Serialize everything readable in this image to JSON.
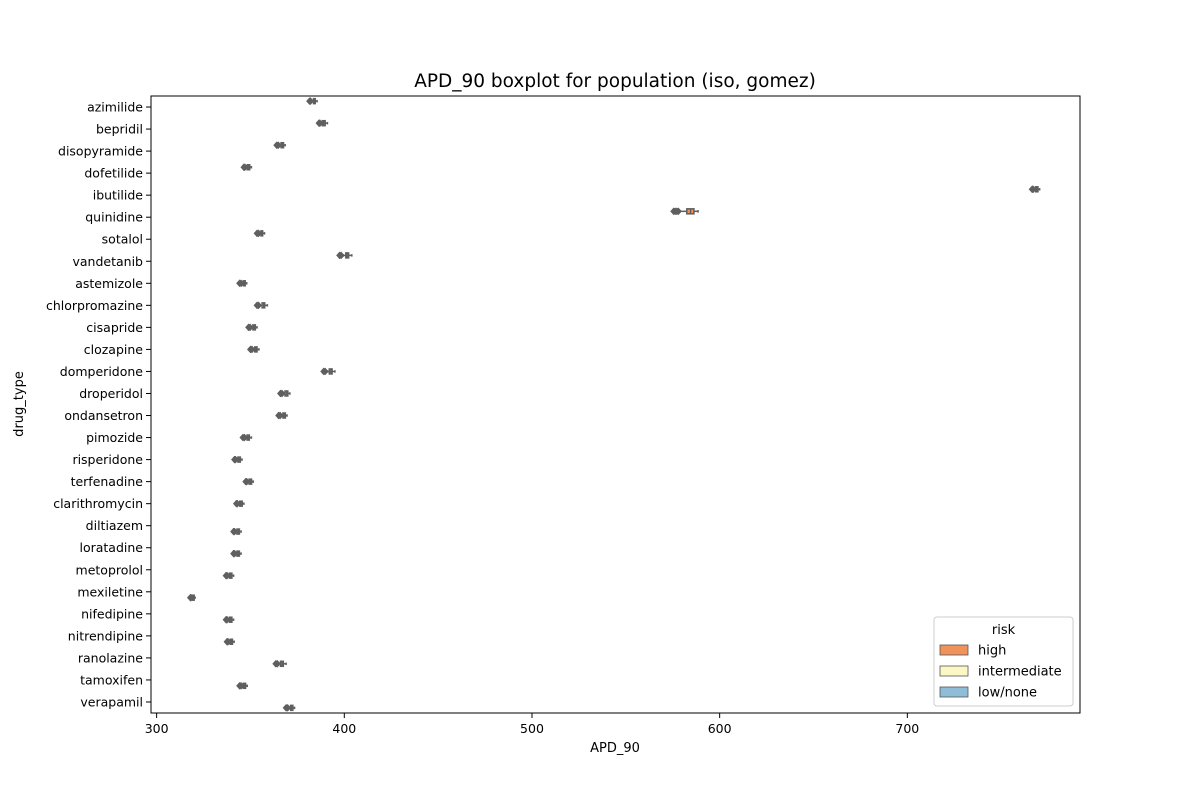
{
  "chart_data": {
    "type": "boxplot",
    "title": "APD_90 boxplot for population (iso, gomez)",
    "xlabel": "APD_90",
    "ylabel": "drug_type",
    "xlim": [
      297,
      792
    ],
    "xticks": [
      300,
      400,
      500,
      600,
      700
    ],
    "grid": false,
    "legend": {
      "title": "risk",
      "placement": "bottom-right",
      "entries": [
        {
          "label": "high",
          "color": "#f0935a"
        },
        {
          "label": "intermediate",
          "color": "#fbf8c6"
        },
        {
          "label": "low/none",
          "color": "#8fbcd6"
        }
      ]
    },
    "box_edge_color": "#5f5f5f",
    "categories": [
      "azimilide",
      "bepridil",
      "disopyramide",
      "dofetilide",
      "ibutilide",
      "quinidine",
      "sotalol",
      "vandetanib",
      "astemizole",
      "chlorpromazine",
      "cisapride",
      "clozapine",
      "domperidone",
      "droperidol",
      "ondansetron",
      "pimozide",
      "risperidone",
      "terfenadine",
      "clarithromycin",
      "diltiazem",
      "loratadine",
      "metoprolol",
      "mexiletine",
      "nifedipine",
      "nitrendipine",
      "ranolazine",
      "tamoxifen",
      "verapamil"
    ],
    "series": [
      {
        "category": "azimilide",
        "risk": "high",
        "min": 383,
        "q1": 383.6,
        "median": 384,
        "q3": 384.5,
        "max": 385.5,
        "outliers": [
          381.5,
          382
        ]
      },
      {
        "category": "bepridil",
        "risk": "high",
        "min": 387.5,
        "q1": 388.3,
        "median": 389,
        "q3": 389.8,
        "max": 391,
        "outliers": [
          386.5,
          387
        ]
      },
      {
        "category": "disopyramide",
        "risk": "high",
        "min": 365.5,
        "q1": 366.3,
        "median": 367,
        "q3": 367.6,
        "max": 368.5,
        "outliers": [
          364,
          364.8
        ]
      },
      {
        "category": "dofetilide",
        "risk": "high",
        "min": 347.5,
        "q1": 348.3,
        "median": 349,
        "q3": 349.6,
        "max": 350.5,
        "outliers": [
          346.5,
          347
        ]
      },
      {
        "category": "ibutilide",
        "risk": "high",
        "min": 767.5,
        "q1": 768.3,
        "median": 769,
        "q3": 769.6,
        "max": 770.5,
        "outliers": [
          766.5,
          767
        ]
      },
      {
        "category": "quinidine",
        "risk": "high",
        "min": 578.5,
        "q1": 582.5,
        "median": 584.5,
        "q3": 586.3,
        "max": 588.5,
        "outliers": [
          575.5,
          576.3,
          577.2,
          578
        ]
      },
      {
        "category": "sotalol",
        "risk": "high",
        "min": 355,
        "q1": 355.6,
        "median": 356,
        "q3": 356.5,
        "max": 357.5,
        "outliers": [
          353.5,
          354.3
        ]
      },
      {
        "category": "vandetanib",
        "risk": "high",
        "min": 399.5,
        "q1": 400.8,
        "median": 401.5,
        "q3": 402.3,
        "max": 404,
        "outliers": [
          397.5,
          398.3
        ]
      },
      {
        "category": "astemizole",
        "risk": "intermediate",
        "min": 345.5,
        "q1": 346.2,
        "median": 346.7,
        "q3": 347.2,
        "max": 348,
        "outliers": [
          344.2,
          345
        ]
      },
      {
        "category": "chlorpromazine",
        "risk": "intermediate",
        "min": 355,
        "q1": 356.2,
        "median": 357,
        "q3": 357.6,
        "max": 359,
        "outliers": [
          353.5,
          354.3
        ]
      },
      {
        "category": "cisapride",
        "risk": "intermediate",
        "min": 350.5,
        "q1": 351.3,
        "median": 352,
        "q3": 352.6,
        "max": 353.5,
        "outliers": [
          349,
          349.8
        ]
      },
      {
        "category": "clozapine",
        "risk": "intermediate",
        "min": 351.5,
        "q1": 352.3,
        "median": 353,
        "q3": 353.5,
        "max": 354.5,
        "outliers": [
          350,
          350.8
        ]
      },
      {
        "category": "domperidone",
        "risk": "intermediate",
        "min": 391,
        "q1": 392,
        "median": 392.8,
        "q3": 393.5,
        "max": 395,
        "outliers": [
          389,
          389.8
        ]
      },
      {
        "category": "droperidol",
        "risk": "intermediate",
        "min": 367.5,
        "q1": 368.4,
        "median": 369.2,
        "q3": 369.9,
        "max": 371,
        "outliers": [
          366,
          366.8
        ]
      },
      {
        "category": "ondansetron",
        "risk": "intermediate",
        "min": 366.5,
        "q1": 367.3,
        "median": 368,
        "q3": 368.6,
        "max": 369.5,
        "outliers": [
          365,
          365.8
        ]
      },
      {
        "category": "pimozide",
        "risk": "intermediate",
        "min": 347.5,
        "q1": 348.2,
        "median": 348.8,
        "q3": 349.4,
        "max": 350.5,
        "outliers": [
          346,
          346.8
        ]
      },
      {
        "category": "risperidone",
        "risk": "intermediate",
        "min": 342.5,
        "q1": 343.3,
        "median": 344,
        "q3": 344.6,
        "max": 345.5,
        "outliers": [
          341.5,
          342
        ]
      },
      {
        "category": "terfenadine",
        "risk": "intermediate",
        "min": 348.5,
        "q1": 349.3,
        "median": 350,
        "q3": 350.6,
        "max": 351.5,
        "outliers": [
          347.5,
          348
        ]
      },
      {
        "category": "clarithromycin",
        "risk": "intermediate",
        "min": 343.5,
        "q1": 344.3,
        "median": 345,
        "q3": 345.6,
        "max": 346.5,
        "outliers": [
          342.5,
          343
        ]
      },
      {
        "category": "diltiazem",
        "risk": "low/none",
        "min": 342,
        "q1": 342.8,
        "median": 343.5,
        "q3": 344.1,
        "max": 345,
        "outliers": [
          341,
          341.5
        ]
      },
      {
        "category": "loratadine",
        "risk": "low/none",
        "min": 342,
        "q1": 342.8,
        "median": 343.5,
        "q3": 344.1,
        "max": 345,
        "outliers": [
          341,
          341.5
        ]
      },
      {
        "category": "metoprolol",
        "risk": "low/none",
        "min": 338,
        "q1": 338.8,
        "median": 339.5,
        "q3": 340.1,
        "max": 341,
        "outliers": [
          337,
          337.5
        ]
      },
      {
        "category": "mexiletine",
        "risk": "low/none",
        "min": 318.5,
        "q1": 319.1,
        "median": 319.6,
        "q3": 320,
        "max": 320.5,
        "outliers": [
          318,
          318.3
        ]
      },
      {
        "category": "nifedipine",
        "risk": "low/none",
        "min": 338,
        "q1": 338.8,
        "median": 339.5,
        "q3": 340.1,
        "max": 341,
        "outliers": [
          337,
          337.5
        ]
      },
      {
        "category": "nitrendipine",
        "risk": "low/none",
        "min": 338.5,
        "q1": 339.2,
        "median": 339.8,
        "q3": 340.4,
        "max": 341.3,
        "outliers": [
          337.5,
          338
        ]
      },
      {
        "category": "ranolazine",
        "risk": "low/none",
        "min": 365,
        "q1": 366,
        "median": 366.8,
        "q3": 367.5,
        "max": 369,
        "outliers": [
          363.5,
          364.3
        ]
      },
      {
        "category": "tamoxifen",
        "risk": "low/none",
        "min": 345.5,
        "q1": 346.2,
        "median": 346.8,
        "q3": 347.4,
        "max": 348.3,
        "outliers": [
          344.2,
          345
        ]
      },
      {
        "category": "verapamil",
        "risk": "low/none",
        "min": 370.5,
        "q1": 371.4,
        "median": 372,
        "q3": 372.6,
        "max": 373.5,
        "outliers": [
          369,
          369.8
        ]
      }
    ]
  }
}
